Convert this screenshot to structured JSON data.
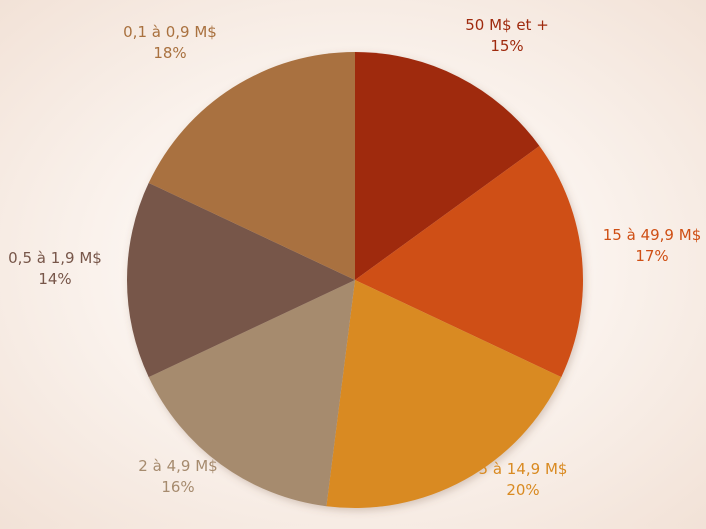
{
  "chart_data": {
    "type": "pie",
    "title": "",
    "start_angle_deg": 0,
    "direction": "clockwise",
    "legend": "none",
    "slices": [
      {
        "label": "50 M$ et +",
        "value_label": "15%",
        "value": 15,
        "color": "#9f2a0e",
        "label_color": "#9f2a0e"
      },
      {
        "label": "15 à 49,9 M$",
        "value_label": "17%",
        "value": 17,
        "color": "#cf4f14",
        "label_color": "#cf4f14"
      },
      {
        "label": "5 à 14,9 M$",
        "value_label": "20%",
        "value": 20,
        "color": "#d98a21",
        "label_color": "#d98a21"
      },
      {
        "label": "2 à 4,9 M$",
        "value_label": "16%",
        "value": 16,
        "color": "#a68b6e",
        "label_color": "#a68b6e"
      },
      {
        "label": "0,5 à 1,9 M$",
        "value_label": "14%",
        "value": 14,
        "color": "#775649",
        "label_color": "#775649"
      },
      {
        "label": "0,1 à 0,9 M$",
        "value_label": "18%",
        "value": 18,
        "color": "#a9713f",
        "label_color": "#a9713f"
      }
    ]
  }
}
